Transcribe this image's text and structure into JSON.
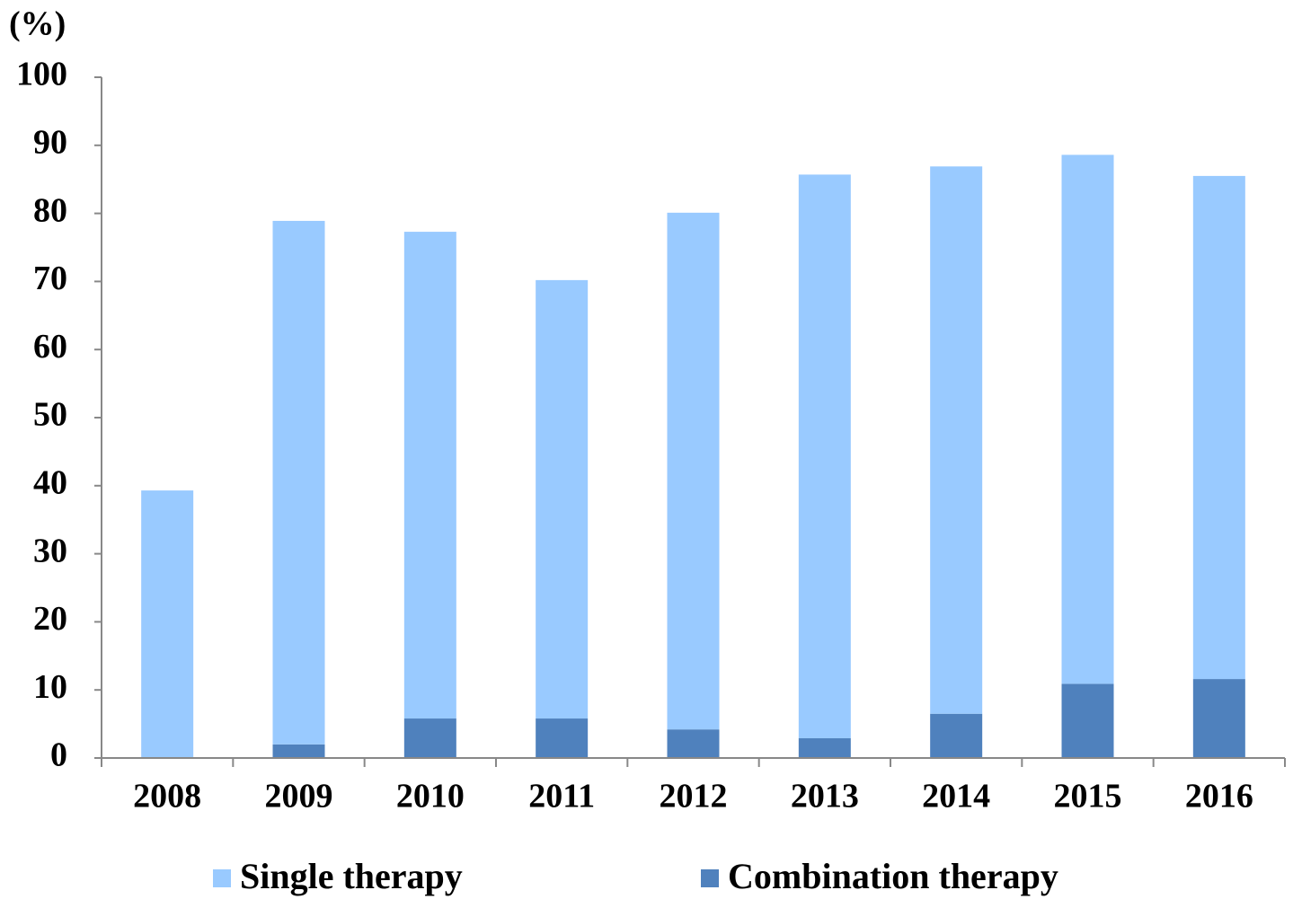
{
  "chart_data": {
    "type": "stacked_bar",
    "y_label": "(%)",
    "categories": [
      "2008",
      "2009",
      "2010",
      "2011",
      "2012",
      "2013",
      "2014",
      "2015",
      "2016"
    ],
    "series": [
      {
        "name": "Single therapy",
        "color": "#99caff",
        "values": [
          39.3,
          76.9,
          71.5,
          64.4,
          75.9,
          82.8,
          80.4,
          77.7,
          73.9
        ]
      },
      {
        "name": "Combination therapy",
        "color": "#4f81bd",
        "values": [
          0,
          2,
          5.8,
          5.8,
          4.2,
          2.9,
          6.5,
          10.9,
          11.6
        ]
      }
    ],
    "ylim": [
      0,
      100
    ],
    "yticks": [
      0,
      10,
      20,
      30,
      40,
      50,
      60,
      70,
      80,
      90,
      100
    ],
    "legend": "bottom"
  }
}
